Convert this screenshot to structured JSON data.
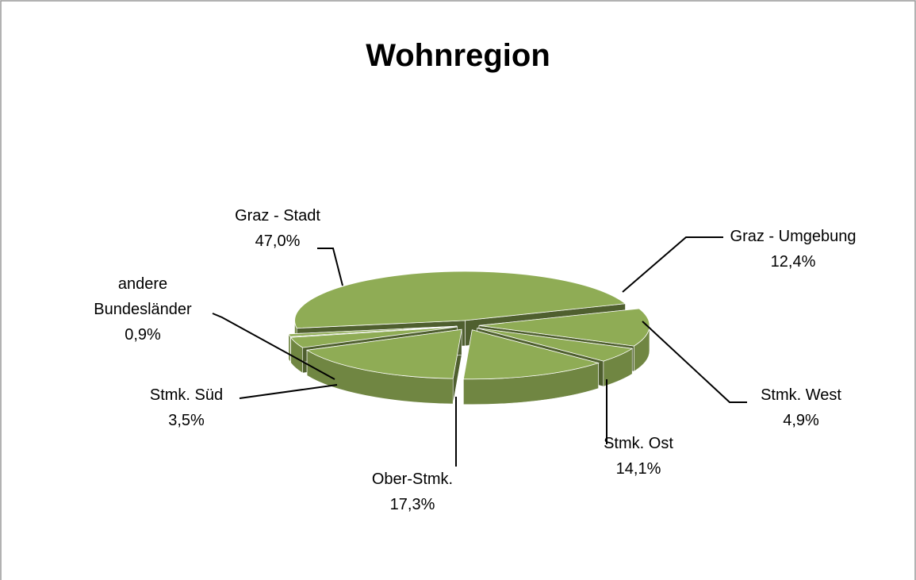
{
  "chart_data": {
    "type": "pie",
    "title": "Wohnregion",
    "categories": [
      "Graz - Stadt",
      "Graz - Umgebung",
      "Stmk. West",
      "Stmk. Ost",
      "Ober-Stmk.",
      "Stmk. Süd",
      "andere Bundesländer"
    ],
    "values": [
      47.0,
      12.4,
      4.9,
      14.1,
      17.3,
      3.5,
      0.9
    ],
    "value_labels": [
      "47,0%",
      "12,4%",
      "4,9%",
      "14,1%",
      "17,3%",
      "3,5%",
      "0,9%"
    ],
    "color": "#8fac55"
  }
}
